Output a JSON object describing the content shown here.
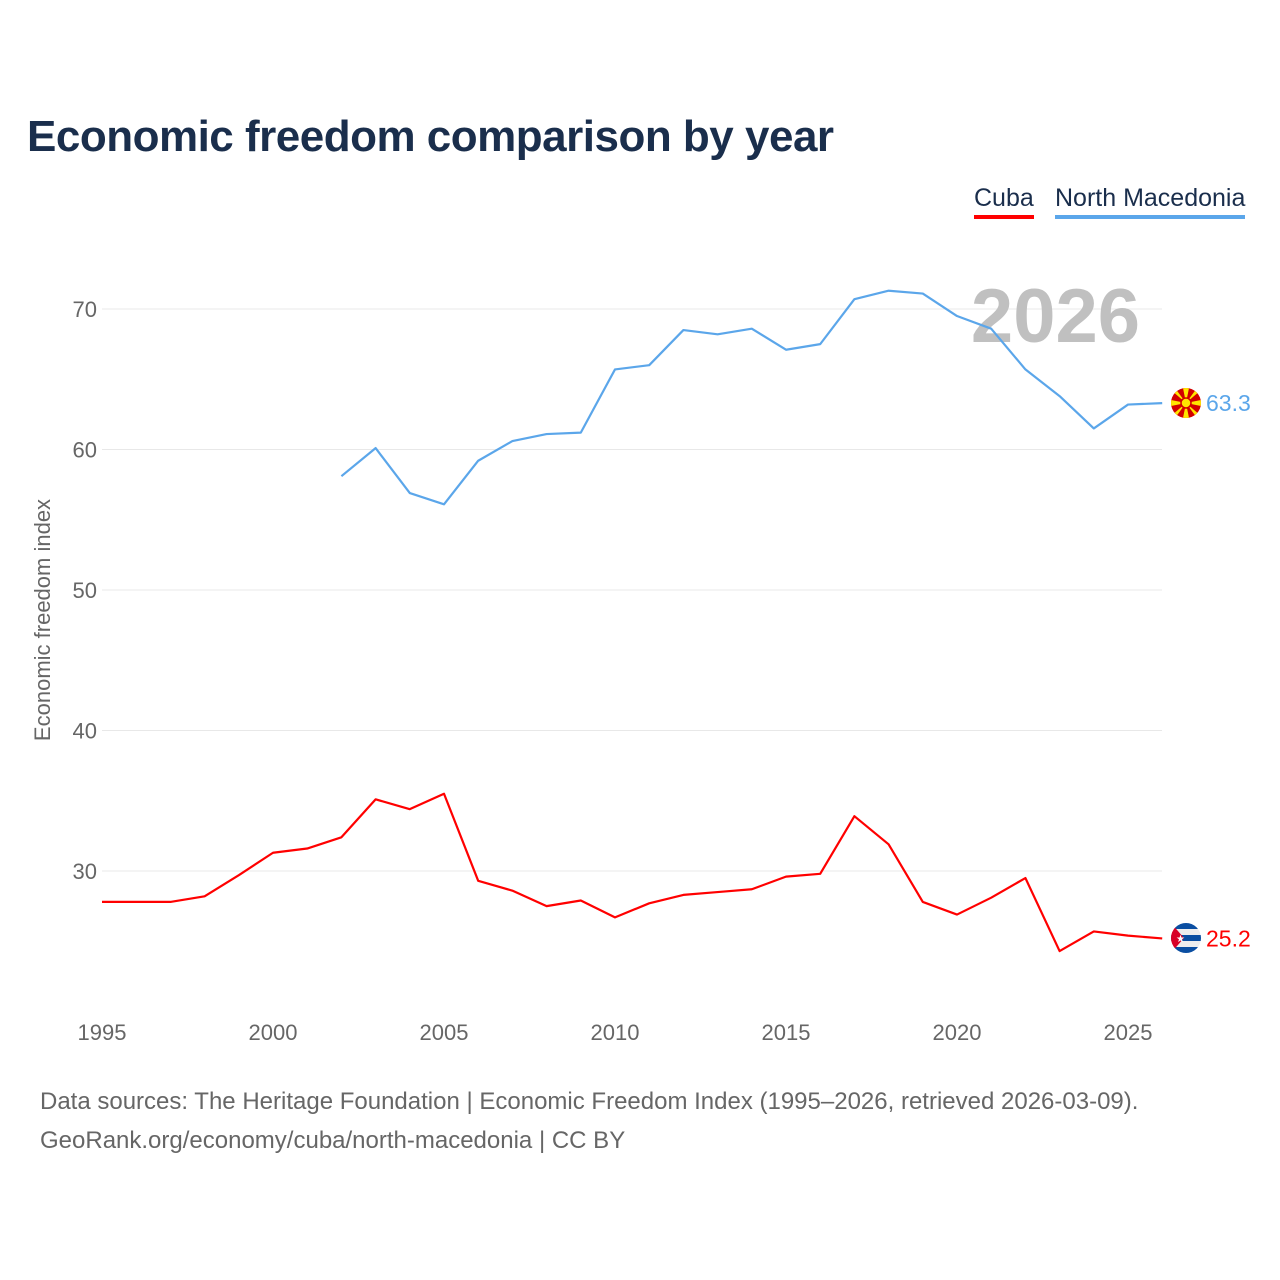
{
  "chart_data": {
    "type": "line",
    "title": "Economic freedom comparison by year",
    "xlabel": "",
    "ylabel": "Economic freedom index",
    "xlim": [
      1995,
      2026
    ],
    "ylim": [
      20.8,
      73
    ],
    "xticks": [
      1995,
      2000,
      2005,
      2010,
      2015,
      2020,
      2025
    ],
    "yticks": [
      30,
      40,
      50,
      60,
      70
    ],
    "grid": true,
    "legend_position": "top-right",
    "watermark_year": "2026",
    "series": [
      {
        "name": "Cuba",
        "color": "#ff0000",
        "end_label": "25.2",
        "x": [
          1995,
          1996,
          1997,
          1998,
          1999,
          2000,
          2001,
          2002,
          2003,
          2004,
          2005,
          2006,
          2007,
          2008,
          2009,
          2010,
          2011,
          2012,
          2013,
          2014,
          2015,
          2016,
          2017,
          2018,
          2019,
          2020,
          2021,
          2022,
          2023,
          2024,
          2025,
          2026
        ],
        "y": [
          27.8,
          27.8,
          27.8,
          28.2,
          29.7,
          31.3,
          31.6,
          32.4,
          35.1,
          34.4,
          35.5,
          29.3,
          28.6,
          27.5,
          27.9,
          26.7,
          27.7,
          28.3,
          28.5,
          28.7,
          29.6,
          29.8,
          33.9,
          31.9,
          27.8,
          26.9,
          28.1,
          29.5,
          24.3,
          25.7,
          25.4,
          25.2
        ]
      },
      {
        "name": "North Macedonia",
        "color": "#5ba6ea",
        "end_label": "63.3",
        "x": [
          2002,
          2003,
          2004,
          2005,
          2006,
          2007,
          2008,
          2009,
          2010,
          2011,
          2012,
          2013,
          2014,
          2015,
          2016,
          2017,
          2018,
          2019,
          2020,
          2021,
          2022,
          2023,
          2024,
          2025,
          2026
        ],
        "y": [
          58.1,
          60.1,
          56.9,
          56.1,
          59.2,
          60.6,
          61.1,
          61.2,
          65.7,
          66.0,
          68.5,
          68.2,
          68.6,
          67.1,
          67.5,
          70.7,
          71.3,
          71.1,
          69.5,
          68.6,
          65.7,
          63.8,
          61.5,
          63.2,
          63.3
        ]
      }
    ]
  },
  "footer": {
    "line1": "Data sources: The Heritage Foundation | Economic Freedom Index (1995–2026, retrieved 2026-03-09).",
    "line2": "GeoRank.org/economy/cuba/north-macedonia | CC BY"
  }
}
